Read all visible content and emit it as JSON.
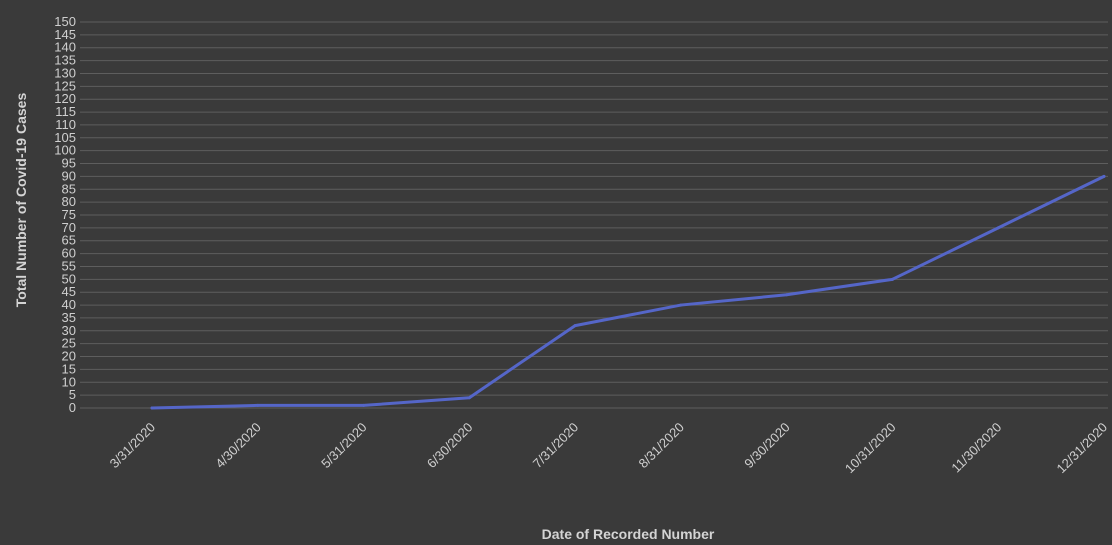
{
  "chart_data": {
    "type": "line",
    "title": "",
    "xlabel": "Date of Recorded Number",
    "ylabel": "Total Number of Covid-19 Cases",
    "categories": [
      "3/31/2020",
      "4/30/2020",
      "5/31/2020",
      "6/30/2020",
      "7/31/2020",
      "8/31/2020",
      "9/30/2020",
      "10/31/2020",
      "11/30/2020",
      "12/31/2020"
    ],
    "series": [
      {
        "color": "#5566c8",
        "values": [
          0,
          1,
          1,
          4,
          32,
          40,
          44,
          50,
          70,
          90
        ]
      }
    ],
    "yticks": [
      0,
      5,
      10,
      15,
      20,
      25,
      30,
      35,
      40,
      45,
      50,
      55,
      60,
      65,
      70,
      75,
      80,
      85,
      90,
      95,
      100,
      105,
      110,
      115,
      120,
      125,
      130,
      135,
      140,
      145,
      150
    ],
    "ylim": [
      0,
      150
    ],
    "grid": true,
    "legend": "none"
  }
}
